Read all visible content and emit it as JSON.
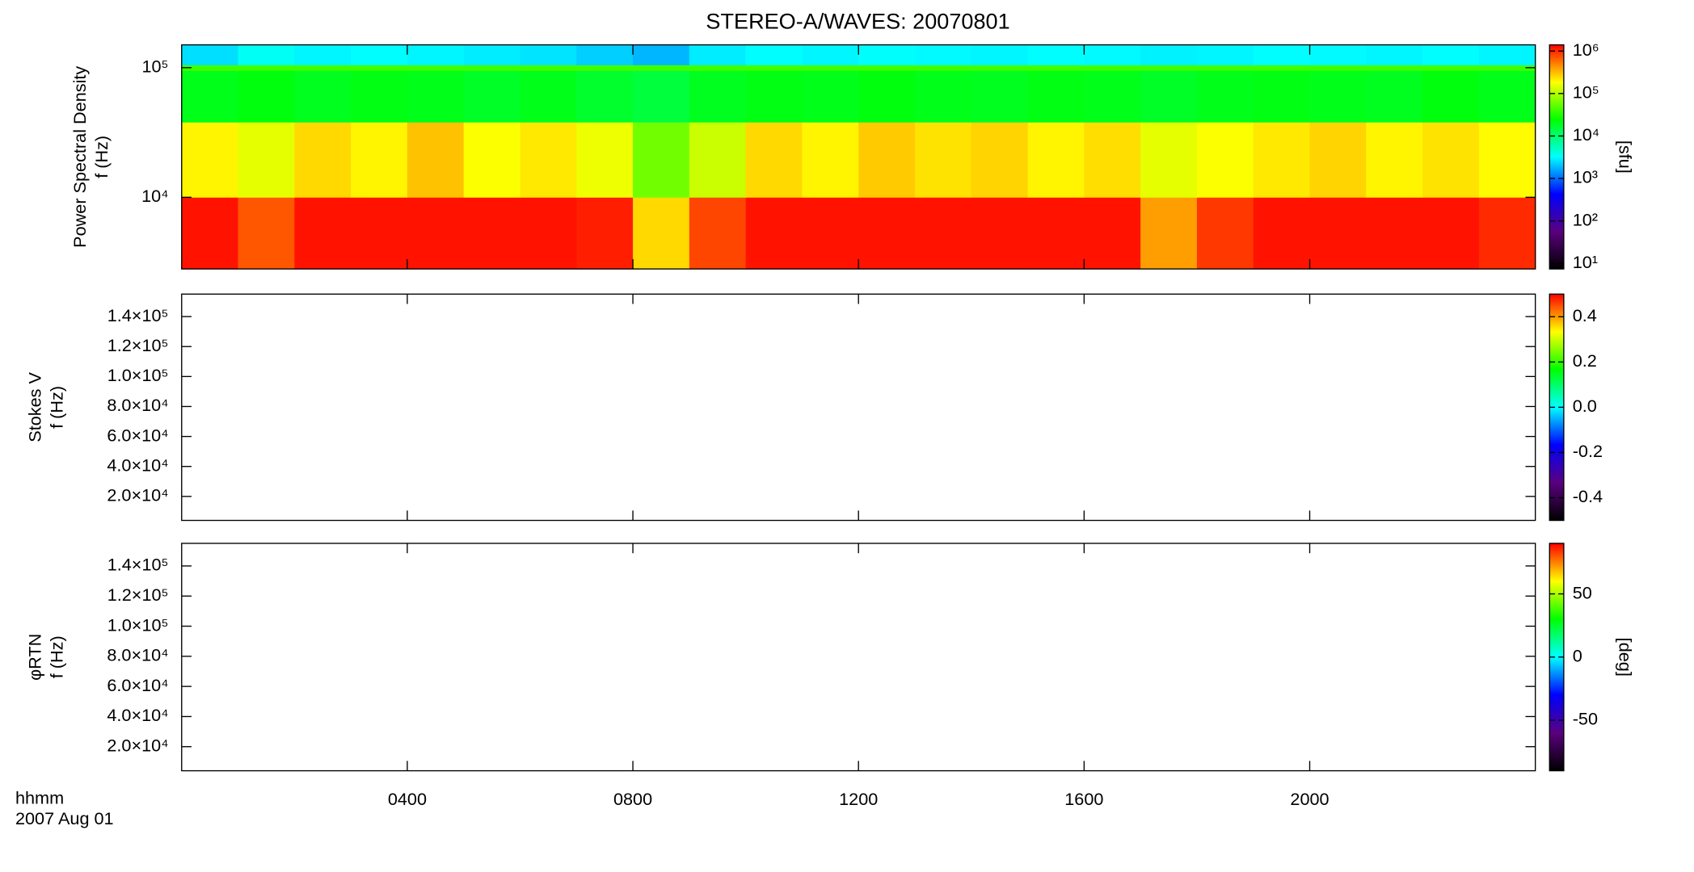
{
  "chart_data": [
    {
      "type": "heatmap",
      "title": "STEREO-A/WAVES: 20070801",
      "ylabel": [
        "Power Spectral Density",
        "f (Hz)"
      ],
      "ylog": true,
      "ylim": [
        2800,
        150000
      ],
      "yticks": [
        {
          "value": 10000,
          "label": "10⁴"
        },
        {
          "value": 100000,
          "label": "10⁵"
        }
      ],
      "x_edges": [
        0,
        1,
        2,
        3,
        4,
        5,
        6,
        7,
        8,
        9,
        10,
        11,
        12,
        13,
        14,
        15,
        16,
        17,
        18,
        19,
        20,
        21,
        22,
        23,
        24
      ],
      "y_edges": [
        2800,
        10000,
        38000,
        95000,
        105000,
        150000
      ],
      "z": [
        [
          1200000,
          700000,
          1200000,
          1200000,
          1200000,
          1200000,
          1200000,
          1100000,
          250000,
          800000,
          1200000,
          1200000,
          1200000,
          1200000,
          1200000,
          1200000,
          1200000,
          400000,
          900000,
          1200000,
          1200000,
          1200000,
          1200000,
          1000000
        ],
        [
          200000,
          150000,
          250000,
          200000,
          300000,
          180000,
          220000,
          160000,
          60000,
          120000,
          250000,
          200000,
          280000,
          230000,
          260000,
          200000,
          240000,
          150000,
          180000,
          220000,
          260000,
          200000,
          230000,
          190000
        ],
        [
          20000,
          22000,
          19000,
          21000,
          20000,
          18000,
          20000,
          17000,
          15000,
          19000,
          21000,
          20000,
          22000,
          20000,
          19000,
          21000,
          20000,
          18000,
          20000,
          21000,
          20000,
          19000,
          22000,
          20000
        ],
        [
          40000,
          40000,
          40000,
          40000,
          40000,
          40000,
          40000,
          40000,
          40000,
          40000,
          40000,
          40000,
          40000,
          40000,
          40000,
          40000,
          40000,
          40000,
          40000,
          40000,
          40000,
          40000,
          40000,
          40000
        ],
        [
          2500,
          3500,
          3000,
          3200,
          3000,
          2800,
          2600,
          2200,
          1800,
          2800,
          3200,
          3000,
          3300,
          3100,
          3000,
          3200,
          3100,
          2900,
          3000,
          3200,
          3100,
          3000,
          3200,
          3000
        ]
      ],
      "colormap": [
        "#000000",
        "#5a007f",
        "#0000ff",
        "#00ffff",
        "#00ff00",
        "#ffff00",
        "#ff0000"
      ],
      "zlog": true,
      "zlim": [
        7.4,
        1400000
      ],
      "zticks": [
        {
          "value": 10,
          "label": "10¹"
        },
        {
          "value": 100,
          "label": "10²"
        },
        {
          "value": 1000,
          "label": "10³"
        },
        {
          "value": 10000,
          "label": "10⁴"
        },
        {
          "value": 100000,
          "label": "10⁵"
        },
        {
          "value": 1000000,
          "label": "10⁶"
        }
      ],
      "zlabel": "[sfu]"
    },
    {
      "type": "heatmap",
      "ylabel": [
        "Stokes V",
        "f (Hz)"
      ],
      "ylog": false,
      "ylim": [
        4000,
        155000
      ],
      "yticks": [
        {
          "value": 20000,
          "label": "2.0×10⁴"
        },
        {
          "value": 40000,
          "label": "4.0×10⁴"
        },
        {
          "value": 60000,
          "label": "6.0×10⁴"
        },
        {
          "value": 80000,
          "label": "8.0×10⁴"
        },
        {
          "value": 100000,
          "label": "1.0×10⁵"
        },
        {
          "value": 120000,
          "label": "1.2×10⁵"
        },
        {
          "value": 140000,
          "label": "1.4×10⁵"
        }
      ],
      "colormap": [
        "#000000",
        "#5a007f",
        "#0000ff",
        "#00ffff",
        "#00ff00",
        "#ffff00",
        "#ff0000"
      ],
      "zlog": false,
      "zlim": [
        -0.5,
        0.5
      ],
      "zticks": [
        -0.4,
        -0.2,
        {
          "value": 0,
          "label": "0.0"
        },
        0.2,
        0.4
      ]
    },
    {
      "type": "heatmap",
      "ylabel": [
        "φRTN",
        "f (Hz)"
      ],
      "ylog": false,
      "ylim": [
        4000,
        155000
      ],
      "yticks": [
        {
          "value": 20000,
          "label": "2.0×10⁴"
        },
        {
          "value": 40000,
          "label": "4.0×10⁴"
        },
        {
          "value": 60000,
          "label": "6.0×10⁴"
        },
        {
          "value": 80000,
          "label": "8.0×10⁴"
        },
        {
          "value": 100000,
          "label": "1.0×10⁵"
        },
        {
          "value": 120000,
          "label": "1.2×10⁵"
        },
        {
          "value": 140000,
          "label": "1.4×10⁵"
        }
      ],
      "colormap": [
        "#000000",
        "#5a007f",
        "#0000ff",
        "#00ffff",
        "#00ff00",
        "#ffff00",
        "#ff0000"
      ],
      "zlog": false,
      "zlim": [
        -90,
        90
      ],
      "zticks": [
        -50,
        0,
        50
      ],
      "zlabel": "[deg]",
      "xlabel": [
        "hhmm",
        "2007 Aug 01"
      ],
      "xlim": [
        0,
        24
      ],
      "xticks": [
        {
          "value": 4,
          "label": "0400"
        },
        {
          "value": 8,
          "label": "0800"
        },
        {
          "value": 12,
          "label": "1200"
        },
        {
          "value": 16,
          "label": "1600"
        },
        {
          "value": 20,
          "label": "2000"
        }
      ]
    }
  ]
}
